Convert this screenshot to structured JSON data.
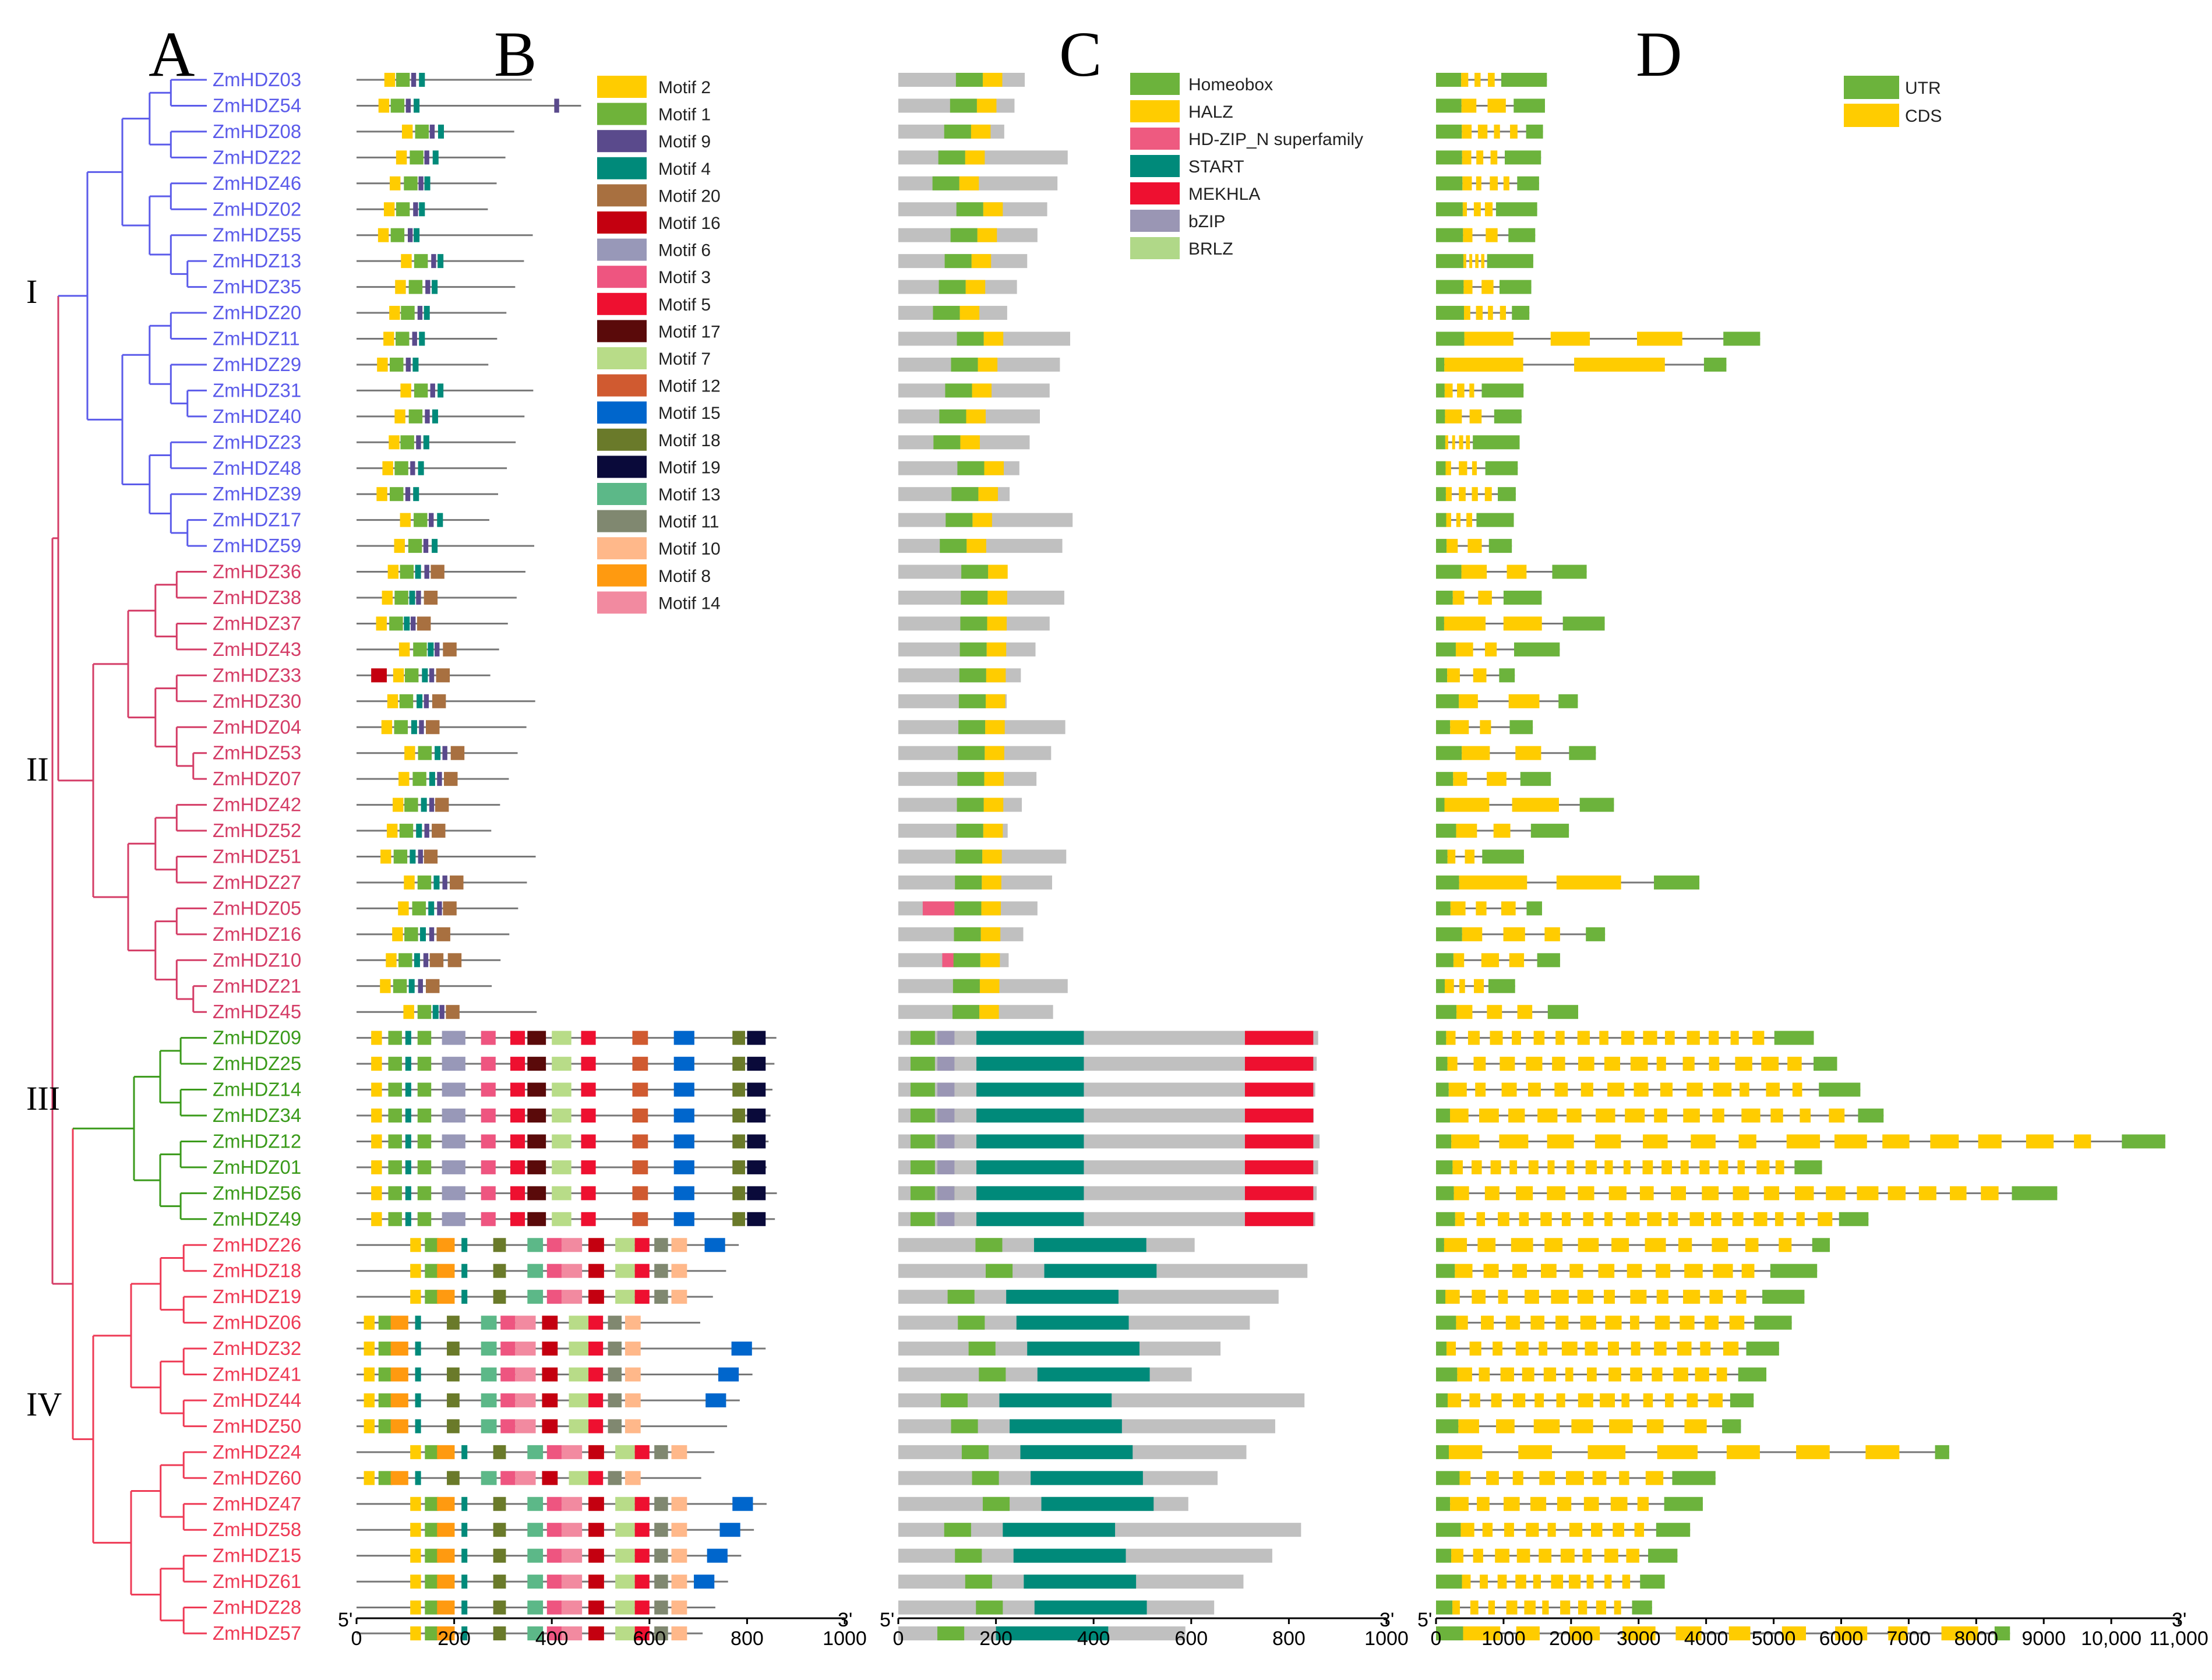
{
  "panel_labels": {
    "a": "A",
    "b": "B",
    "c": "C",
    "d": "D"
  },
  "clades": [
    {
      "label": "I",
      "color": "#5b5bea",
      "genes": [
        "ZmHDZ03",
        "ZmHDZ54",
        "ZmHDZ08",
        "ZmHDZ22",
        "ZmHDZ46",
        "ZmHDZ02",
        "ZmHDZ55",
        "ZmHDZ13",
        "ZmHDZ35",
        "ZmHDZ20",
        "ZmHDZ11",
        "ZmHDZ29",
        "ZmHDZ31",
        "ZmHDZ40",
        "ZmHDZ23",
        "ZmHDZ48",
        "ZmHDZ39",
        "ZmHDZ17",
        "ZmHDZ59"
      ]
    },
    {
      "label": "II",
      "color": "#d43c66",
      "genes": [
        "ZmHDZ36",
        "ZmHDZ38",
        "ZmHDZ37",
        "ZmHDZ43",
        "ZmHDZ33",
        "ZmHDZ30",
        "ZmHDZ04",
        "ZmHDZ53",
        "ZmHDZ07",
        "ZmHDZ42",
        "ZmHDZ52",
        "ZmHDZ51",
        "ZmHDZ27",
        "ZmHDZ05",
        "ZmHDZ16",
        "ZmHDZ10",
        "ZmHDZ21",
        "ZmHDZ45"
      ]
    },
    {
      "label": "III",
      "color": "#3a9a1a",
      "genes": [
        "ZmHDZ09",
        "ZmHDZ25",
        "ZmHDZ14",
        "ZmHDZ34",
        "ZmHDZ12",
        "ZmHDZ01",
        "ZmHDZ56",
        "ZmHDZ49"
      ]
    },
    {
      "label": "IV",
      "color": "#ee3a55",
      "genes": [
        "ZmHDZ26",
        "ZmHDZ18",
        "ZmHDZ19",
        "ZmHDZ06",
        "ZmHDZ32",
        "ZmHDZ41",
        "ZmHDZ44",
        "ZmHDZ50",
        "ZmHDZ24",
        "ZmHDZ60",
        "ZmHDZ47",
        "ZmHDZ58",
        "ZmHDZ15",
        "ZmHDZ61",
        "ZmHDZ28",
        "ZmHDZ57"
      ]
    }
  ],
  "motif_legend": [
    {
      "name": "Motif 2",
      "color": "#ffcc00"
    },
    {
      "name": "Motif 1",
      "color": "#6fb33a"
    },
    {
      "name": "Motif 9",
      "color": "#5a4a8c"
    },
    {
      "name": "Motif 4",
      "color": "#008a7a"
    },
    {
      "name": "Motif 20",
      "color": "#a87040"
    },
    {
      "name": "Motif 16",
      "color": "#c40010"
    },
    {
      "name": "Motif 6",
      "color": "#9898b8"
    },
    {
      "name": "Motif 3",
      "color": "#ee5580"
    },
    {
      "name": "Motif 5",
      "color": "#ee1030"
    },
    {
      "name": "Motif 17",
      "color": "#5a0a0a"
    },
    {
      "name": "Motif 7",
      "color": "#b8dc88"
    },
    {
      "name": "Motif 12",
      "color": "#d05a30"
    },
    {
      "name": "Motif 15",
      "color": "#0066cc"
    },
    {
      "name": "Motif 18",
      "color": "#6a7a2a"
    },
    {
      "name": "Motif 19",
      "color": "#0a0a3a"
    },
    {
      "name": "Motif 13",
      "color": "#5cb888"
    },
    {
      "name": "Motif 11",
      "color": "#808870"
    },
    {
      "name": "Motif 10",
      "color": "#ffb88a"
    },
    {
      "name": "Motif 8",
      "color": "#ff9a10"
    },
    {
      "name": "Motif 14",
      "color": "#f28aa0"
    }
  ],
  "domain_legend": [
    {
      "name": "Homeobox",
      "color": "#6cb33c"
    },
    {
      "name": "HALZ",
      "color": "#ffcc00"
    },
    {
      "name": "HD-ZIP_N superfamily",
      "color": "#ee5a80"
    },
    {
      "name": "START",
      "color": "#008a7a"
    },
    {
      "name": "MEKHLA",
      "color": "#ee1030"
    },
    {
      "name": "bZIP",
      "color": "#9a96b4"
    },
    {
      "name": "BRLZ",
      "color": "#b0d888"
    }
  ],
  "structure_legend": [
    {
      "name": "UTR",
      "color": "#6cb33c"
    },
    {
      "name": "CDS",
      "color": "#ffcc00"
    }
  ],
  "axes": {
    "b": {
      "start_label": "5'",
      "end_label": "3'",
      "ticks": [
        "0",
        "200",
        "400",
        "600",
        "800",
        "1000"
      ],
      "max": 1000
    },
    "c": {
      "start_label": "5'",
      "end_label": "3'",
      "ticks": [
        "0",
        "200",
        "400",
        "600",
        "800",
        "1000"
      ],
      "max": 1000
    },
    "d": {
      "start_label": "5'",
      "end_label": "3'",
      "ticks": [
        "0",
        "1000",
        "2000",
        "3000",
        "4000",
        "5000",
        "6000",
        "7000",
        "8000",
        "9000",
        "10,000",
        "11,000"
      ],
      "max": 11000
    }
  }
}
